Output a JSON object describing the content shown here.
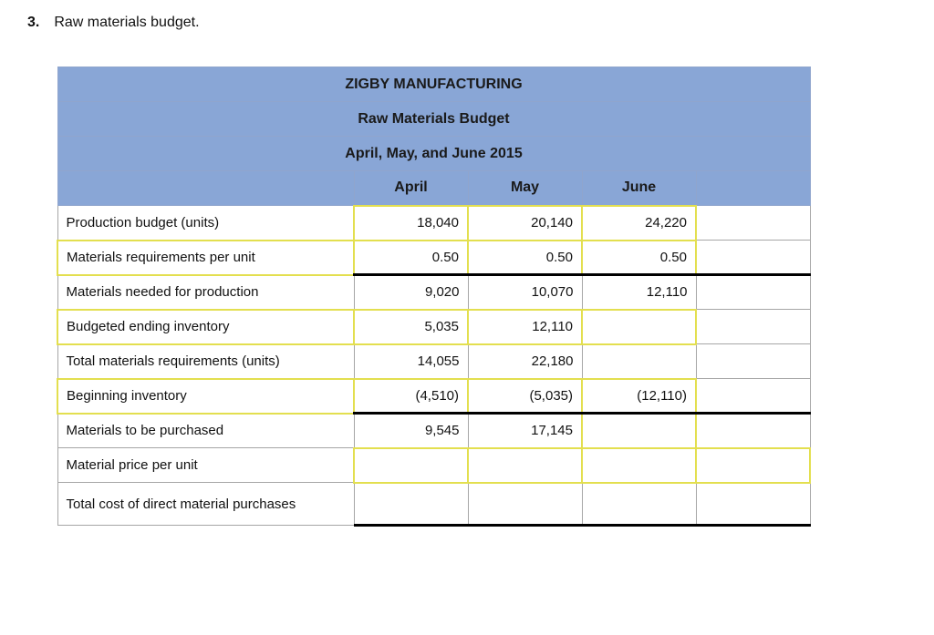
{
  "heading": {
    "number": "3.",
    "text": "Raw materials budget."
  },
  "table": {
    "titles": [
      "ZIGBY MANUFACTURING",
      "Raw Materials Budget",
      "April, May, and June 2015"
    ],
    "columns": [
      "",
      "April",
      "May",
      "June",
      ""
    ],
    "rows": [
      {
        "label": "Production budget (units)",
        "label_input": false,
        "thick_bottom": false,
        "cells": [
          {
            "text": "18,040",
            "input": true
          },
          {
            "text": "20,140",
            "input": true
          },
          {
            "text": "24,220",
            "input": true
          },
          {
            "text": "",
            "input": false
          }
        ]
      },
      {
        "label": "Materials requirements per unit",
        "label_input": true,
        "thick_bottom": true,
        "cells": [
          {
            "text": "0.50",
            "input": true
          },
          {
            "text": "0.50",
            "input": true
          },
          {
            "text": "0.50",
            "input": true
          },
          {
            "text": "",
            "input": false
          }
        ]
      },
      {
        "label": "Materials needed for production",
        "label_input": false,
        "thick_bottom": false,
        "cells": [
          {
            "text": "9,020",
            "input": false
          },
          {
            "text": "10,070",
            "input": false
          },
          {
            "text": "12,110",
            "input": false
          },
          {
            "text": "",
            "input": false
          }
        ]
      },
      {
        "label": "Budgeted ending inventory",
        "label_input": true,
        "thick_bottom": false,
        "cells": [
          {
            "text": "5,035",
            "input": true
          },
          {
            "text": "12,110",
            "input": true
          },
          {
            "text": "",
            "input": true
          },
          {
            "text": "",
            "input": false
          }
        ]
      },
      {
        "label": "Total materials requirements (units)",
        "label_input": false,
        "thick_bottom": false,
        "cells": [
          {
            "text": "14,055",
            "input": false
          },
          {
            "text": "22,180",
            "input": false
          },
          {
            "text": "",
            "input": false
          },
          {
            "text": "",
            "input": false
          }
        ]
      },
      {
        "label": "Beginning inventory",
        "label_input": true,
        "thick_bottom": true,
        "cells": [
          {
            "text": "(4,510)",
            "input": true
          },
          {
            "text": "(5,035)",
            "input": true
          },
          {
            "text": "(12,110)",
            "input": true
          },
          {
            "text": "",
            "input": false
          }
        ]
      },
      {
        "label": "Materials to be purchased",
        "label_input": false,
        "thick_bottom": false,
        "cells": [
          {
            "text": "9,545",
            "input": false
          },
          {
            "text": "17,145",
            "input": false
          },
          {
            "text": "",
            "input": true
          },
          {
            "text": "",
            "input": false
          }
        ]
      },
      {
        "label": "Material price per unit",
        "label_input": false,
        "thick_bottom": false,
        "cells": [
          {
            "text": "",
            "input": true
          },
          {
            "text": "",
            "input": true
          },
          {
            "text": "",
            "input": true
          },
          {
            "text": "",
            "input": true
          }
        ]
      },
      {
        "label": "Total cost of direct material purchases",
        "label_input": false,
        "thick_bottom": true,
        "cells": [
          {
            "text": "",
            "input": false
          },
          {
            "text": "",
            "input": false
          },
          {
            "text": "",
            "input": false
          },
          {
            "text": "",
            "input": false
          }
        ]
      }
    ]
  },
  "colors": {
    "header_bg": "#89a6d6",
    "header_text": "#1a1a1a",
    "input_border": "#e3df4f"
  }
}
